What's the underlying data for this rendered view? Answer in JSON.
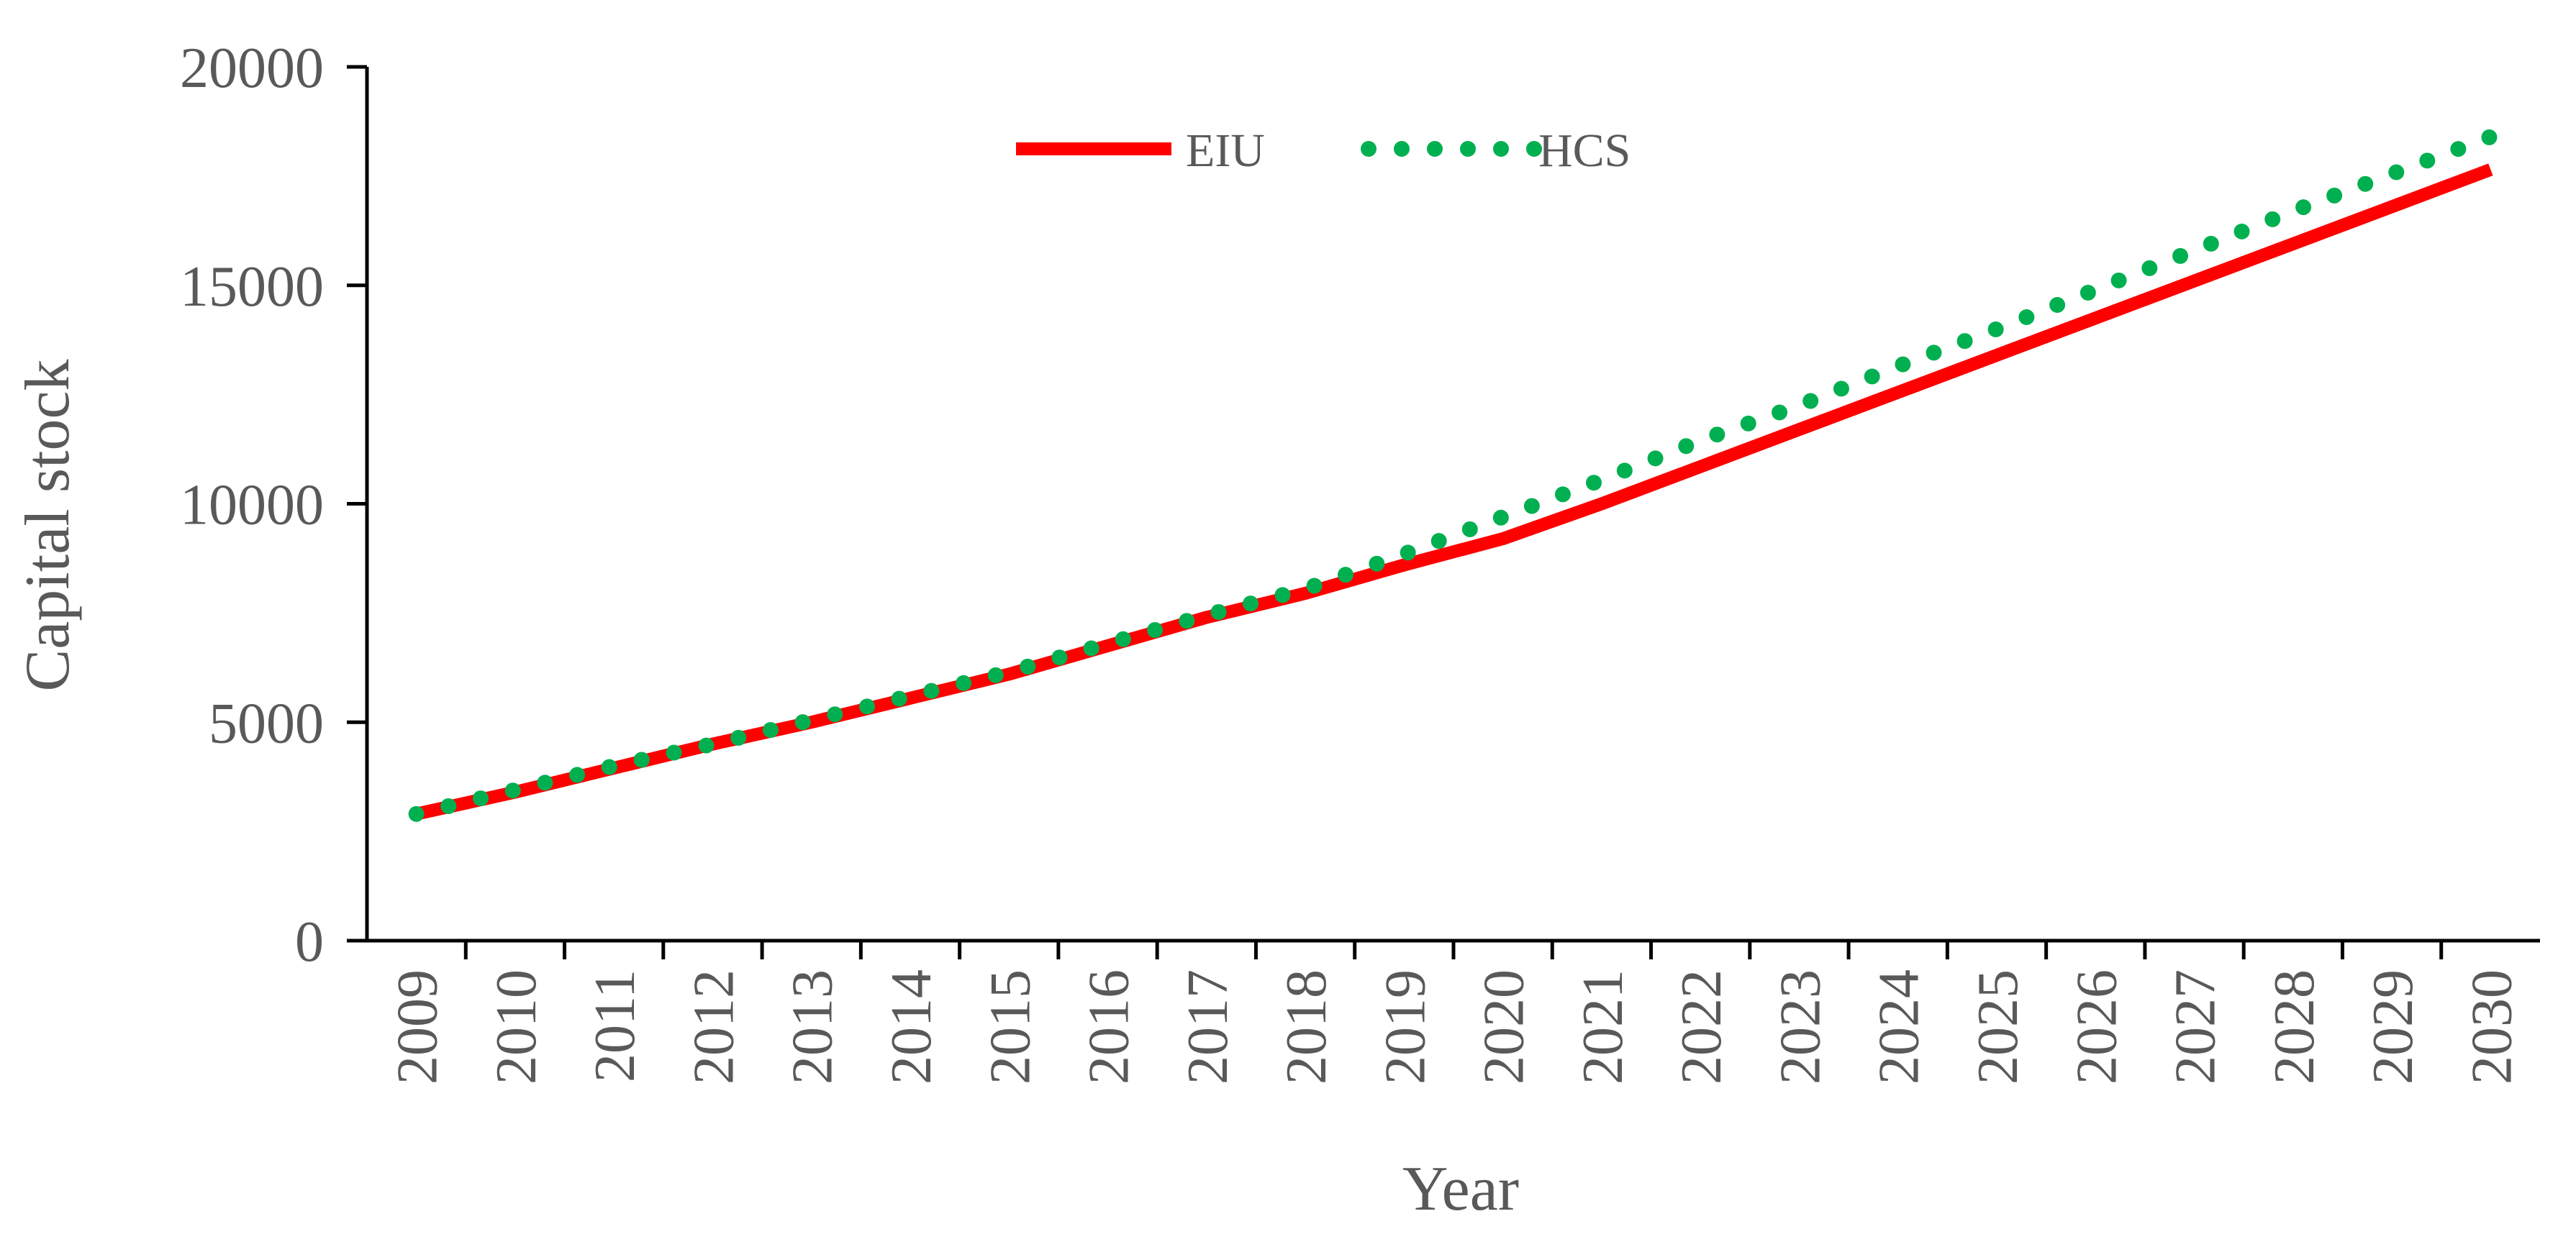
{
  "chart_data": {
    "type": "line",
    "x": [
      "2009",
      "2010",
      "2011",
      "2012",
      "2013",
      "2014",
      "2015",
      "2016",
      "2017",
      "2018",
      "2019",
      "2020",
      "2021",
      "2022",
      "2023",
      "2024",
      "2025",
      "2026",
      "2027",
      "2028",
      "2029",
      "2030"
    ],
    "series": [
      {
        "name": "EIU",
        "color": "#ff0000",
        "style": "solid",
        "values": [
          2900,
          3400,
          3950,
          4500,
          5000,
          5550,
          6100,
          6750,
          7400,
          7950,
          8600,
          9200,
          10000,
          10850,
          11700,
          12550,
          13400,
          14250,
          15100,
          15950,
          16800,
          17650
        ]
      },
      {
        "name": "HCS",
        "color": "#00b050",
        "style": "dotted",
        "values": [
          2900,
          3450,
          4000,
          4500,
          5050,
          5600,
          6150,
          6800,
          7450,
          8050,
          8850,
          9700,
          10550,
          11450,
          12250,
          13150,
          14000,
          14900,
          15800,
          16700,
          17550,
          18400
        ]
      }
    ],
    "title": "",
    "xlabel": "Year",
    "ylabel": "Capital stock",
    "ylim": [
      0,
      20000
    ],
    "yticks": [
      "0",
      "5000",
      "10000",
      "15000",
      "20000"
    ],
    "grid": false,
    "legend": "top-center"
  }
}
